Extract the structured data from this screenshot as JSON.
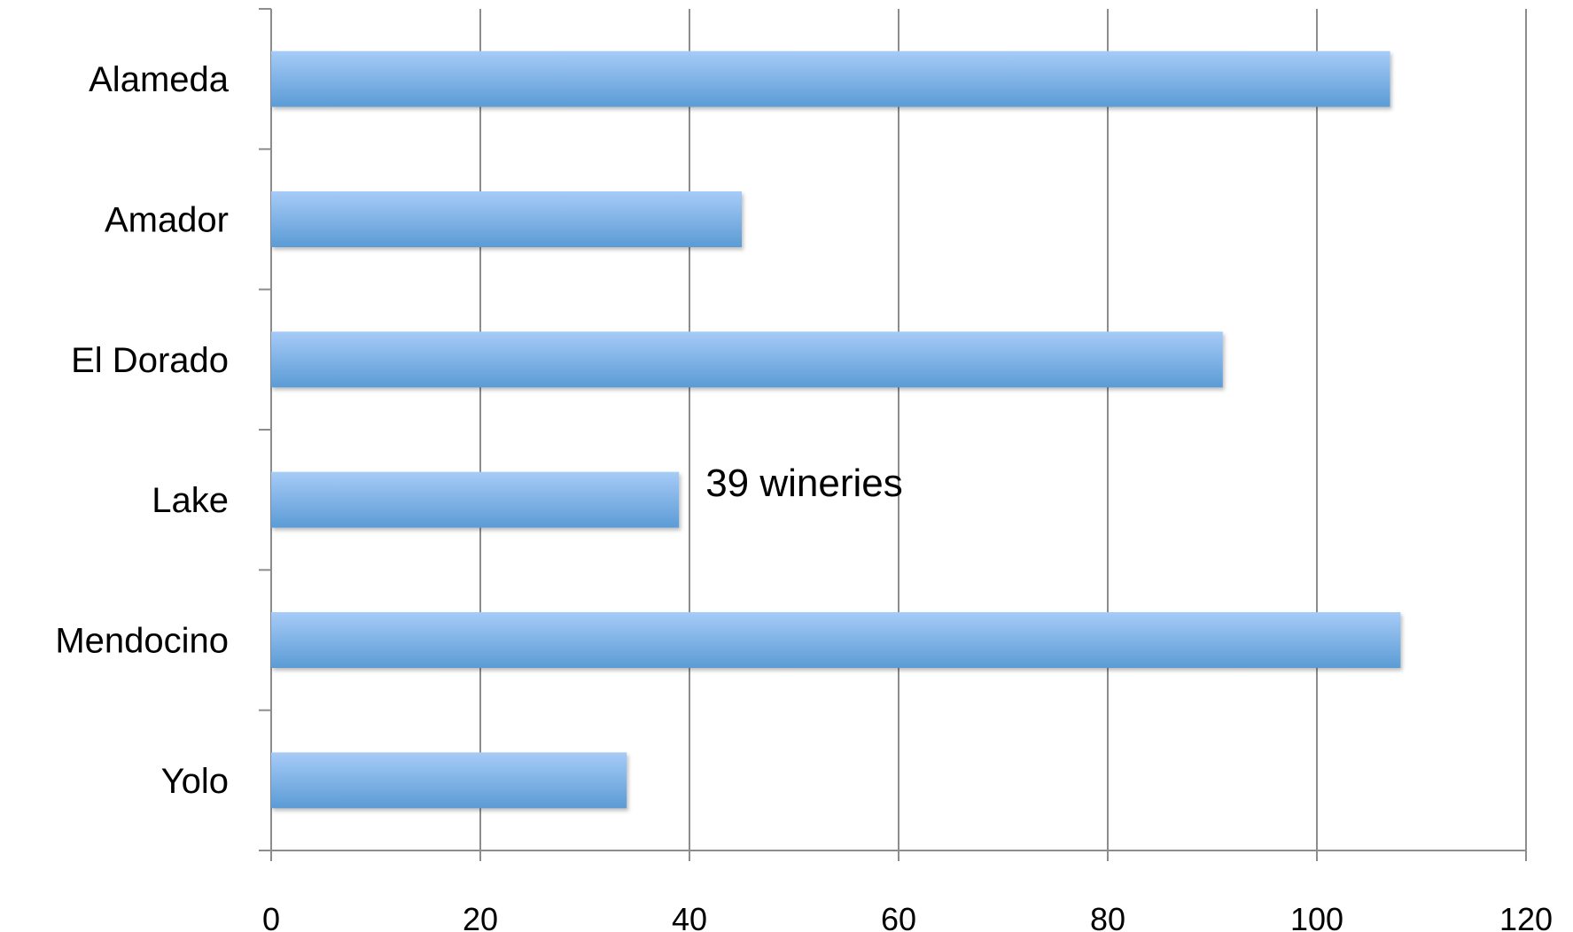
{
  "chart_data": {
    "type": "bar",
    "orientation": "horizontal",
    "categories": [
      "Alameda",
      "Amador",
      "El Dorado",
      "Lake",
      "Mendocino",
      "Yolo"
    ],
    "values": [
      107,
      45,
      91,
      39,
      108,
      34
    ],
    "xlim": [
      0,
      120
    ],
    "xticks": [
      0,
      20,
      40,
      60,
      80,
      100,
      120
    ],
    "grid": "vertical",
    "bar_color": "#5b9bd5",
    "bar_color_light": "#a6cbf7",
    "annotations": [
      {
        "text": "39 wineries",
        "category": "Lake"
      }
    ]
  }
}
